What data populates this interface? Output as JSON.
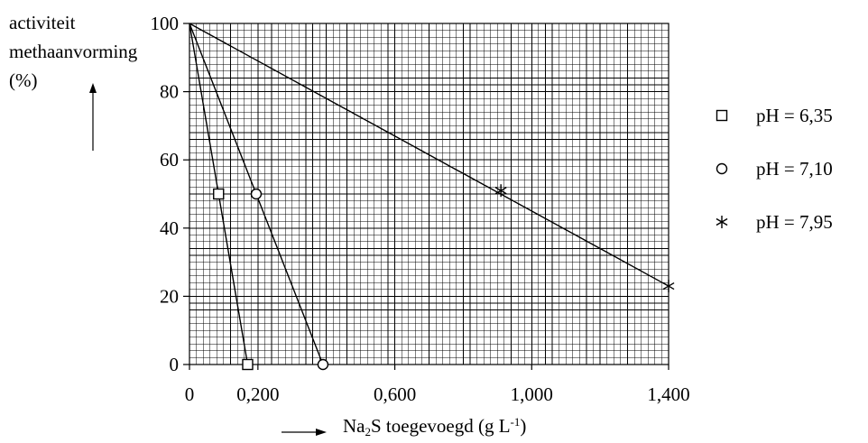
{
  "chart_data": {
    "type": "line",
    "ylabel_lines": [
      "activiteit",
      "methaanvorming",
      "(%)"
    ],
    "xlabel": {
      "prefix": "Na",
      "sub": "2",
      "mid": "S toegevoegd (g L",
      "sup": "-1",
      "suffix": ")"
    },
    "xlim": [
      0,
      1.4
    ],
    "ylim": [
      0,
      100
    ],
    "x_ticks": [
      {
        "value": 0,
        "label": "0"
      },
      {
        "value": 0.2,
        "label": "0,200"
      },
      {
        "value": 0.6,
        "label": "0,600"
      },
      {
        "value": 1.0,
        "label": "1,000"
      },
      {
        "value": 1.4,
        "label": "1,400"
      }
    ],
    "y_ticks": [
      {
        "value": 0,
        "label": "0"
      },
      {
        "value": 20,
        "label": "20"
      },
      {
        "value": 40,
        "label": "40"
      },
      {
        "value": 60,
        "label": "60"
      },
      {
        "value": 80,
        "label": "80"
      },
      {
        "value": 100,
        "label": "100"
      }
    ],
    "grid": true,
    "legend_position": "right",
    "series": [
      {
        "name": "pH = 6,35",
        "marker": "square",
        "line": [
          [
            0,
            100
          ],
          [
            0.17,
            0
          ]
        ],
        "points": [
          [
            0.085,
            50
          ],
          [
            0.17,
            0
          ]
        ]
      },
      {
        "name": "pH = 7,10",
        "marker": "circle",
        "line": [
          [
            0,
            100
          ],
          [
            0.39,
            0
          ]
        ],
        "points": [
          [
            0.195,
            50
          ],
          [
            0.39,
            0
          ]
        ]
      },
      {
        "name": "pH = 7,95",
        "marker": "asterisk",
        "line": [
          [
            0,
            100
          ],
          [
            1.4,
            23
          ]
        ],
        "points": [
          [
            0.91,
            51
          ],
          [
            1.4,
            23
          ]
        ]
      }
    ],
    "colors": {
      "ink": "#000000",
      "grid": "#000000",
      "background": "#ffffff"
    }
  }
}
